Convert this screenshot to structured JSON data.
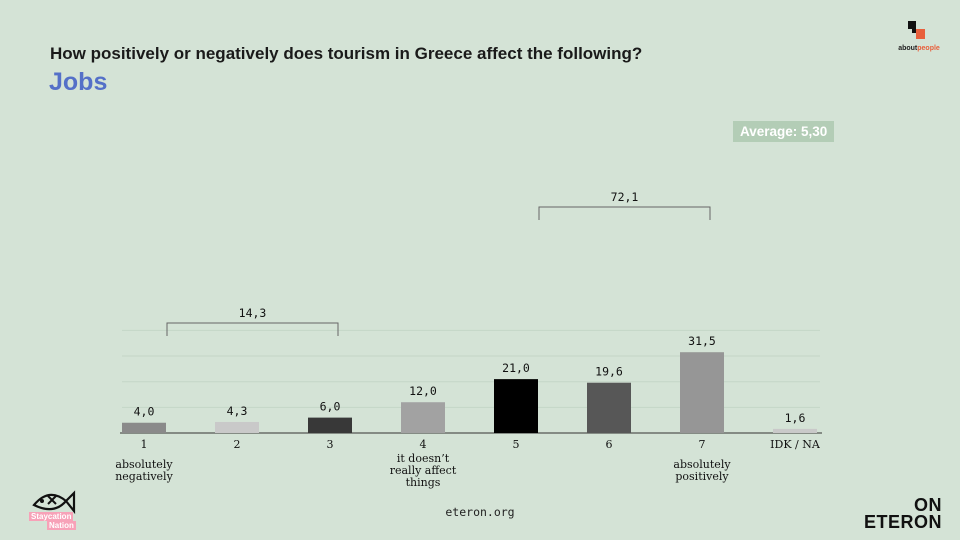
{
  "header": {
    "question": "How positively or negatively does tourism in Greece affect the following?",
    "subtitle": "Jobs",
    "average_label": "Average: 5,30"
  },
  "chart_data": {
    "type": "bar",
    "title": "How positively or negatively does tourism in Greece affect the following?",
    "subtitle": "Jobs",
    "categories": [
      "1",
      "2",
      "3",
      "4",
      "5",
      "6",
      "7",
      "IDK / NA"
    ],
    "category_sublabels": [
      "absolutely negatively",
      "",
      "",
      "it doesn't really affect things",
      "",
      "",
      "absolutely positively",
      ""
    ],
    "values": [
      4.0,
      4.3,
      6.0,
      12.0,
      21.0,
      19.6,
      31.5,
      1.6
    ],
    "value_labels": [
      "4,0",
      "4,3",
      "6,0",
      "12,0",
      "21,0",
      "19,6",
      "31,5",
      "1,6"
    ],
    "colors": [
      "#8a8a8a",
      "#c9c9c9",
      "#383838",
      "#a2a2a2",
      "#000000",
      "#575757",
      "#969696",
      "#c9c9c9"
    ],
    "ylim": [
      0,
      40
    ],
    "grid": true,
    "groups": [
      {
        "label": "14,3",
        "from": 0,
        "to": 2
      },
      {
        "label": "72,1",
        "from": 4,
        "to": 6
      }
    ]
  },
  "footer": {
    "source": "eteron.org",
    "brand_line1": "ON",
    "brand_line2": "ETERON",
    "logo_left_line1": "Staycation",
    "logo_left_line2": "Nation",
    "logo_right_word1": "about",
    "logo_right_word2": "people"
  },
  "colors": {
    "background": "#d4e3d6",
    "subtitle": "#5470c8",
    "average_badge": "#b3cdb6",
    "accent": "#e8603c"
  }
}
